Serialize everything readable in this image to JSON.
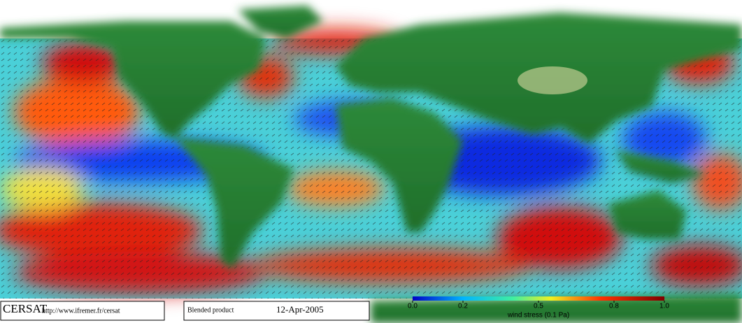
{
  "footer": {
    "logo": "CERSAT",
    "url": "http://www.ifremer.fr/cersat",
    "product": "Blended product",
    "date": "12-Apr-2005"
  },
  "colorbar": {
    "label": "wind stress (0.1 Pa)",
    "lim": [
      0,
      1
    ],
    "ticks": [
      {
        "value": 0,
        "label": "0.0"
      },
      0.2,
      0.5,
      0.8,
      {
        "value": 1,
        "label": "1.0"
      }
    ]
  }
}
